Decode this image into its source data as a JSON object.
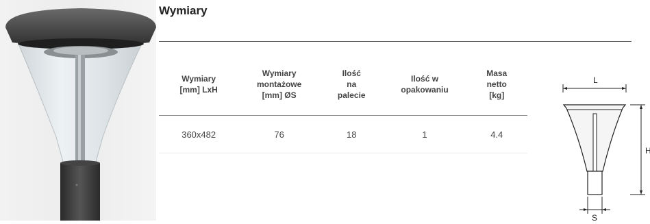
{
  "section": {
    "title": "Wymiary"
  },
  "table": {
    "headers": [
      [
        "Wymiary",
        "[mm] LxH"
      ],
      [
        "Wymiary",
        "montażowe",
        "[mm] ØS"
      ],
      [
        "Ilość",
        "na",
        "palecie"
      ],
      [
        "Ilość w",
        "opakowaniu"
      ],
      [
        "Masa",
        "netto",
        "[kg]"
      ]
    ],
    "rows": [
      [
        "360x482",
        "76",
        "18",
        "1",
        "4.4"
      ]
    ]
  },
  "drawing": {
    "label_l": "L",
    "label_h": "H",
    "label_s": "S"
  },
  "colors": {
    "lamp_body": "#3c3c3c",
    "lamp_shade": "#dfe6ea",
    "rule": "#555555"
  }
}
